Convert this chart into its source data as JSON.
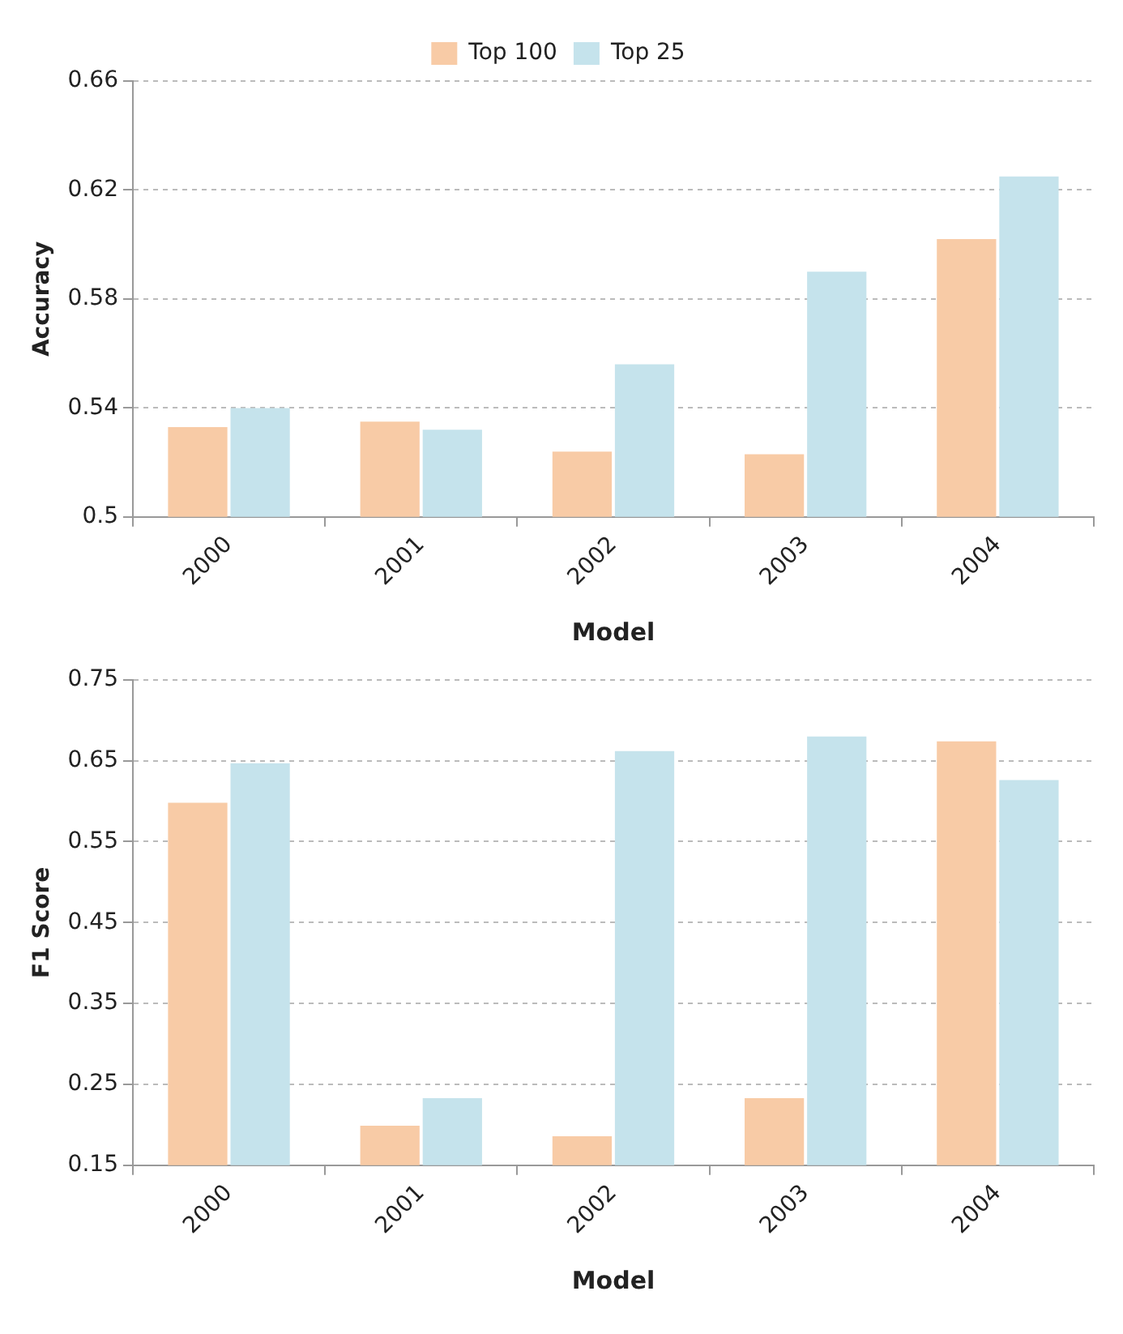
{
  "chart_data": [
    {
      "type": "bar",
      "categories": [
        "2000",
        "2001",
        "2002",
        "2003",
        "2004"
      ],
      "xlabel": "Model",
      "ylabel": "Accuracy",
      "series": [
        {
          "name": "Top 100",
          "color": "#f8cba6",
          "values": [
            0.533,
            0.535,
            0.524,
            0.523,
            0.602
          ]
        },
        {
          "name": "Top 25",
          "color": "#c5e3ec",
          "values": [
            0.54,
            0.532,
            0.556,
            0.59,
            0.625
          ]
        }
      ],
      "ylim": [
        0.5,
        0.66
      ],
      "yticks": [
        0.5,
        0.54,
        0.58,
        0.62,
        0.66
      ],
      "grid": "y",
      "legend": "top"
    },
    {
      "type": "bar",
      "categories": [
        "2000",
        "2001",
        "2002",
        "2003",
        "2004"
      ],
      "xlabel": "Model",
      "ylabel": "F1 Score",
      "series": [
        {
          "color": "#f8cba6",
          "values": [
            0.598,
            0.199,
            0.186,
            0.233,
            0.674
          ]
        },
        {
          "color": "#c5e3ec",
          "values": [
            0.647,
            0.233,
            0.662,
            0.68,
            0.626
          ]
        }
      ],
      "ylim": [
        0.15,
        0.75
      ],
      "yticks": [
        0.15,
        0.25,
        0.35,
        0.45,
        0.55,
        0.65,
        0.75
      ],
      "grid": "y"
    }
  ]
}
